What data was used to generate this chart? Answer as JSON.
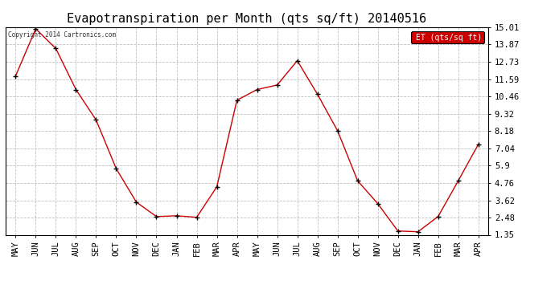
{
  "title": "Evapotranspiration per Month (qts sq/ft) 20140516",
  "copyright": "Copyright 2014 Cartronics.com",
  "legend_label": "ET (qts/sq ft)",
  "months": [
    "MAY",
    "JUN",
    "JUL",
    "AUG",
    "SEP",
    "OCT",
    "NOV",
    "DEC",
    "JAN",
    "FEB",
    "MAR",
    "APR",
    "MAY",
    "JUN",
    "JUL",
    "AUG",
    "SEP",
    "OCT",
    "NOV",
    "DEC",
    "JAN",
    "FEB",
    "MAR",
    "APR"
  ],
  "values": [
    11.8,
    14.9,
    13.6,
    10.9,
    8.9,
    5.7,
    3.5,
    2.55,
    2.6,
    2.5,
    4.5,
    10.2,
    10.9,
    11.2,
    12.8,
    10.6,
    8.2,
    4.9,
    3.4,
    1.6,
    1.55,
    2.55,
    4.9,
    7.3
  ],
  "line_color": "#cc0000",
  "marker_color": "#000000",
  "background_color": "#ffffff",
  "grid_color": "#c0c0c0",
  "yticks": [
    1.35,
    2.48,
    3.62,
    4.76,
    5.9,
    7.04,
    8.18,
    9.32,
    10.46,
    11.59,
    12.73,
    13.87,
    15.01
  ],
  "ymin": 1.35,
  "ymax": 15.01,
  "title_fontsize": 11,
  "tick_fontsize": 7.5,
  "legend_bg": "#cc0000",
  "legend_text_color": "#ffffff"
}
